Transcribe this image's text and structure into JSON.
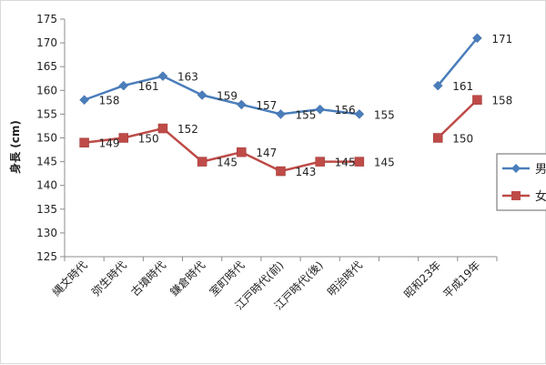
{
  "chart_data": {
    "type": "line",
    "title": "",
    "ylabel": "身長 (cm)",
    "xlabel": "",
    "ylim": [
      125,
      175
    ],
    "yticks": [
      125,
      130,
      135,
      140,
      145,
      150,
      155,
      160,
      165,
      170,
      175
    ],
    "categories": [
      "縄文時代",
      "弥生時代",
      "古墳時代",
      "鎌倉時代",
      "室町時代",
      "江戸時代(前)",
      "江戸時代(後)",
      "明治時代",
      "",
      "昭和23年",
      "平成19年"
    ],
    "series": [
      {
        "name": "男",
        "color": "#4a7ebb",
        "marker": "diamond",
        "values": [
          158,
          161,
          163,
          159,
          157,
          155,
          156,
          155,
          null,
          161,
          171
        ]
      },
      {
        "name": "女",
        "color": "#be4b48",
        "marker": "square",
        "values": [
          149,
          150,
          152,
          145,
          147,
          143,
          145,
          145,
          null,
          150,
          158
        ]
      }
    ],
    "grid": false,
    "legend": "right (cut off)"
  }
}
